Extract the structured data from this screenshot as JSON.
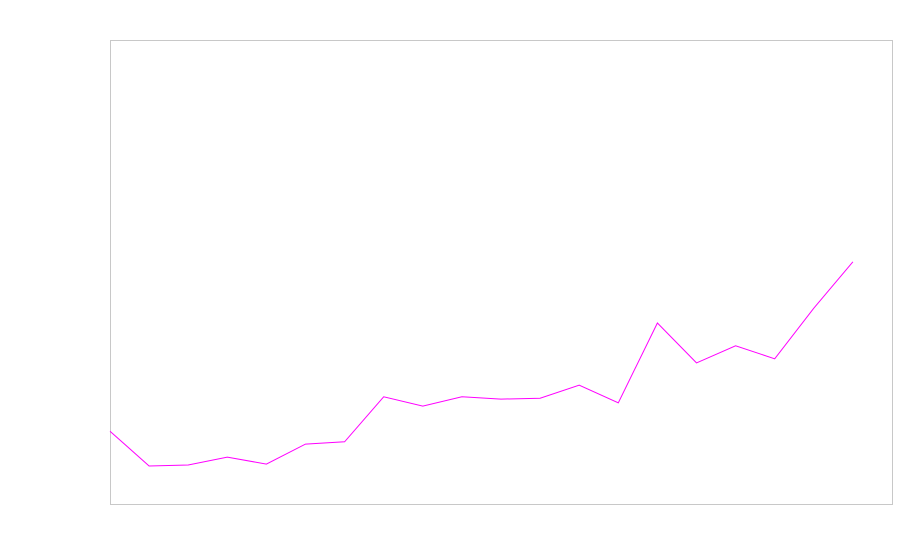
{
  "chart_data": {
    "type": "line",
    "title": "",
    "xlabel": "",
    "ylabel": "",
    "x": [
      0,
      1,
      2,
      3,
      4,
      5,
      6,
      7,
      8,
      9,
      10,
      11,
      12,
      13,
      14,
      15,
      16,
      17,
      18,
      19
    ],
    "xlim": [
      0,
      20
    ],
    "ylim": [
      0,
      100
    ],
    "grid": false,
    "axis_ticks_visible": false,
    "frame_color": "#c8c8c8",
    "series": [
      {
        "color": "#ff00ff",
        "values": [
          15.7,
          8.2,
          8.4,
          10.1,
          8.6,
          12.9,
          13.4,
          23.1,
          21.1,
          23.1,
          22.6,
          22.8,
          25.6,
          21.8,
          39.0,
          30.4,
          34.1,
          31.3,
          42.2,
          52.2
        ]
      }
    ]
  }
}
